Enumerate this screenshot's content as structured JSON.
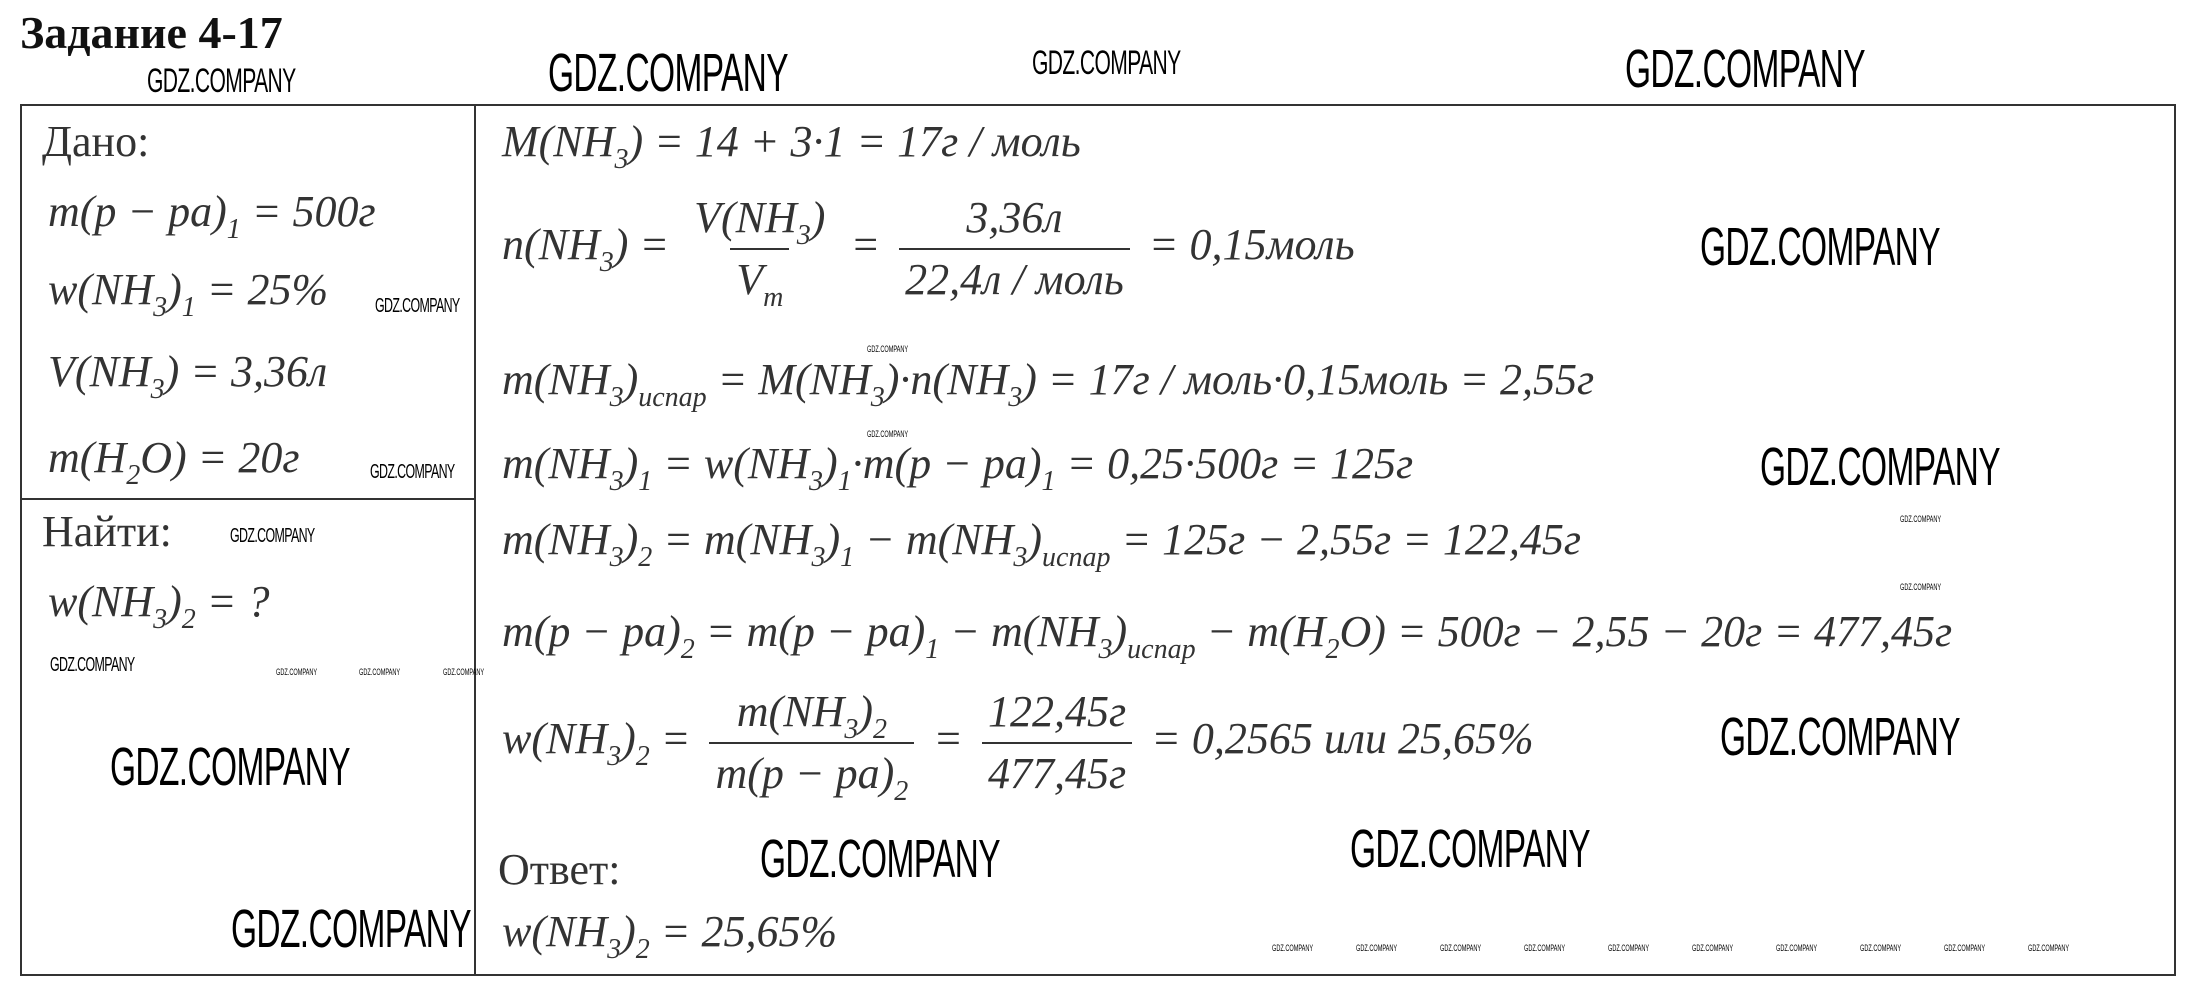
{
  "title": "Задание 4-17",
  "watermark": "GDZ.COMPANY",
  "given": {
    "heading": "Дано:",
    "lines": [
      [
        "m(p − pa)",
        {
          "sub": "1"
        },
        " = 500г"
      ],
      [
        "w(NH",
        {
          "sub": "3"
        },
        ")",
        {
          "sub": "1"
        },
        " = 25%"
      ],
      [
        "V(NH",
        {
          "sub": "3"
        },
        ") = 3,36л"
      ],
      [
        "m(H",
        {
          "sub": "2"
        },
        "O) = 20г"
      ]
    ]
  },
  "find": {
    "heading": "Найти:",
    "lines": [
      [
        "w(NH",
        {
          "sub": "3"
        },
        ")",
        {
          "sub": "2"
        },
        " = ?"
      ]
    ]
  },
  "solution": {
    "lines": [
      [
        "M(NH",
        {
          "sub": "3"
        },
        ") = 14 + 3·1 = 17г / моль"
      ],
      [
        "n(NH",
        {
          "sub": "3"
        },
        ") = ",
        {
          "frac": {
            "num": [
              "V(NH",
              {
                "sub": "3"
              },
              ")"
            ],
            "den": [
              "V",
              {
                "sub": "m"
              }
            ]
          }
        },
        " = ",
        {
          "frac": {
            "num": [
              "3,36л"
            ],
            "den": [
              "22,4л / моль"
            ]
          }
        },
        " = 0,15моль"
      ],
      [
        "m(NH",
        {
          "sub": "3"
        },
        ")",
        {
          "sub": "испар"
        },
        " = M(NH",
        {
          "sub": "3"
        },
        ")·n(NH",
        {
          "sub": "3"
        },
        ") = 17г / моль·0,15моль = 2,55г"
      ],
      [
        "m(NH",
        {
          "sub": "3"
        },
        ")",
        {
          "sub": "1"
        },
        " = w(NH",
        {
          "sub": "3"
        },
        ")",
        {
          "sub": "1"
        },
        "·m(p − pa)",
        {
          "sub": "1"
        },
        " = 0,25·500г = 125г"
      ],
      [
        "m(NH",
        {
          "sub": "3"
        },
        ")",
        {
          "sub": "2"
        },
        " = m(NH",
        {
          "sub": "3"
        },
        ")",
        {
          "sub": "1"
        },
        " − m(NH",
        {
          "sub": "3"
        },
        ")",
        {
          "sub": "испар"
        },
        " = 125г − 2,55г = 122,45г"
      ],
      [
        "m(p − pa)",
        {
          "sub": "2"
        },
        " = m(p − pa)",
        {
          "sub": "1"
        },
        " − m(NH",
        {
          "sub": "3"
        },
        ")",
        {
          "sub": "испар"
        },
        " − m(H",
        {
          "sub": "2"
        },
        "O) = 500г − 2,55 − 20г = 477,45г"
      ],
      [
        "w(NH",
        {
          "sub": "3"
        },
        ")",
        {
          "sub": "2"
        },
        " = ",
        {
          "frac": {
            "num": [
              "m(NH",
              {
                "sub": "3"
              },
              ")",
              {
                "sub": "2"
              }
            ],
            "den": [
              "m(p − pa)",
              {
                "sub": "2"
              }
            ]
          }
        },
        " = ",
        {
          "frac": {
            "num": [
              "122,45г"
            ],
            "den": [
              "477,45г"
            ]
          }
        },
        " = 0,2565 или 25,65%"
      ]
    ],
    "answer_heading": "Ответ:",
    "answer": [
      "w(NH",
      {
        "sub": "3"
      },
      ")",
      {
        "sub": "2"
      },
      " = 25,65%"
    ]
  }
}
